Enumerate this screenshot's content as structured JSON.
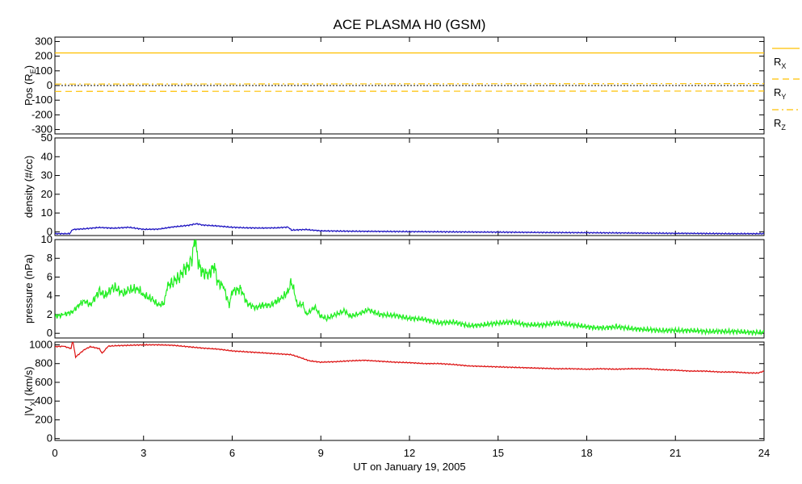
{
  "chart_data": {
    "title": "ACE PLASMA H0 (GSM)",
    "xlabel": "UT on January 19, 2005",
    "x_ticks": [
      0,
      3,
      6,
      9,
      12,
      15,
      18,
      21,
      24
    ],
    "xlim": [
      0,
      24
    ],
    "panels": [
      {
        "id": "pos",
        "type": "line",
        "ylabel_parts": [
          "Pos (R",
          "E",
          ")"
        ],
        "ylim": [
          -330,
          330
        ],
        "y_ticks": [
          300,
          200,
          100,
          0,
          -100,
          -200,
          -300
        ],
        "grid": false,
        "legend_placement": "right",
        "series": [
          {
            "name": "R_X",
            "label_main": "R",
            "label_sub": "X",
            "color": "#FFC000",
            "style": "solid",
            "x": [
              0,
              24
            ],
            "values": [
              222,
              222
            ]
          },
          {
            "name": "R_Y",
            "label_main": "R",
            "label_sub": "Y",
            "color": "#FFC000",
            "style": "dashed",
            "x": [
              0,
              24
            ],
            "values": [
              -40,
              -38
            ]
          },
          {
            "name": "R_Z",
            "label_main": "R",
            "label_sub": "Z",
            "color": "#FFC000",
            "style": "dashdot",
            "x": [
              0,
              24
            ],
            "values": [
              10,
              13
            ]
          }
        ],
        "zero_line": true
      },
      {
        "id": "density",
        "type": "line",
        "ylabel": "density (#/cc)",
        "ylim": [
          -2,
          50
        ],
        "y_ticks": [
          50,
          40,
          30,
          20,
          10,
          0
        ],
        "grid": false,
        "series": [
          {
            "name": "density",
            "color": "#1a10c0",
            "x": [
              0,
              0.5,
              0.6,
              1,
              1.5,
              2,
              2.5,
              3,
              3.5,
              4,
              4.5,
              4.8,
              5,
              5.5,
              6,
              6.5,
              7,
              7.5,
              7.9,
              8,
              8.5,
              9,
              10,
              11,
              12,
              13,
              14,
              15,
              16,
              17,
              18,
              19,
              20,
              21,
              22,
              23,
              24
            ],
            "values": [
              -1,
              -1,
              1.2,
              1.6,
              2.3,
              1.9,
              2.4,
              1.3,
              1.4,
              2.6,
              3.4,
              4.3,
              3.6,
              3.1,
              2.4,
              2.1,
              2.0,
              2.1,
              2.5,
              0.9,
              1.2,
              0.5,
              0.3,
              0.2,
              0.1,
              0.0,
              -0.1,
              -0.2,
              -0.3,
              -0.4,
              -0.5,
              -0.6,
              -0.7,
              -0.8,
              -0.9,
              -1.0,
              -1.0
            ]
          }
        ]
      },
      {
        "id": "pressure",
        "type": "line",
        "ylabel": "pressure (nPa)",
        "ylim": [
          -0.5,
          10
        ],
        "y_ticks": [
          10,
          8,
          6,
          4,
          2,
          0
        ],
        "grid": false,
        "series": [
          {
            "name": "pressure",
            "color": "#22ee22",
            "x": [
              0,
              0.3,
              0.6,
              0.8,
              1.0,
              1.2,
              1.5,
              1.7,
              2.0,
              2.3,
              2.5,
              2.8,
              3.0,
              3.3,
              3.5,
              3.7,
              3.8,
              4.0,
              4.2,
              4.4,
              4.6,
              4.7,
              4.75,
              4.8,
              4.9,
              5.0,
              5.2,
              5.4,
              5.5,
              5.7,
              5.9,
              6.0,
              6.3,
              6.5,
              6.8,
              7.0,
              7.3,
              7.5,
              7.7,
              7.9,
              8.0,
              8.1,
              8.2,
              8.4,
              8.5,
              8.7,
              8.8,
              9.0,
              9.2,
              9.5,
              9.8,
              10.0,
              10.3,
              10.6,
              11.0,
              11.5,
              12.0,
              12.5,
              13.0,
              13.5,
              14.0,
              14.5,
              15.0,
              15.5,
              16.0,
              16.5,
              17.0,
              17.5,
              18.0,
              18.3,
              18.6,
              19.0,
              19.5,
              20.0,
              20.5,
              21.0,
              21.5,
              22.0,
              22.5,
              23.0,
              23.5,
              24.0
            ],
            "values": [
              1.8,
              2.0,
              2.3,
              3.0,
              3.5,
              3.0,
              4.5,
              4.0,
              5.0,
              4.2,
              4.6,
              4.8,
              4.1,
              3.6,
              3.0,
              3.2,
              5.0,
              5.5,
              6.0,
              6.8,
              7.5,
              9.0,
              10.4,
              8.5,
              7.0,
              6.5,
              6.3,
              7.2,
              5.5,
              5.0,
              3.0,
              4.5,
              4.7,
              3.2,
              2.7,
              3.0,
              3.0,
              3.4,
              3.8,
              4.5,
              5.5,
              4.5,
              3.0,
              3.1,
              2.0,
              2.5,
              2.8,
              1.8,
              1.6,
              2.0,
              2.4,
              1.8,
              2.1,
              2.5,
              2.0,
              1.9,
              1.6,
              1.5,
              1.1,
              1.2,
              0.8,
              0.9,
              1.1,
              1.2,
              0.9,
              0.9,
              1.1,
              0.9,
              0.7,
              0.6,
              0.6,
              0.7,
              0.5,
              0.4,
              0.3,
              0.3,
              0.3,
              0.2,
              0.2,
              0.2,
              0.1,
              0.1
            ]
          }
        ]
      },
      {
        "id": "vx",
        "type": "line",
        "ylabel_parts": [
          "|V",
          "X",
          "| (km/s)"
        ],
        "ylim": [
          -20,
          1030
        ],
        "y_ticks": [
          1000,
          800,
          600,
          400,
          200,
          0
        ],
        "grid": false,
        "series": [
          {
            "name": "|Vx|",
            "color": "#dd1111",
            "x": [
              0,
              0.3,
              0.55,
              0.6,
              0.7,
              1.0,
              1.2,
              1.5,
              1.6,
              1.8,
              2.0,
              2.5,
              3.0,
              3.5,
              4.0,
              4.5,
              5.0,
              5.5,
              6.0,
              6.5,
              7.0,
              7.5,
              8.0,
              8.3,
              8.6,
              9.0,
              9.5,
              10.0,
              10.5,
              11.0,
              11.5,
              12.0,
              12.5,
              13.0,
              13.5,
              14.0,
              14.5,
              15.0,
              15.5,
              16.0,
              16.5,
              17.0,
              17.5,
              18.0,
              18.5,
              19.0,
              19.5,
              20.0,
              20.5,
              21.0,
              21.5,
              22.0,
              22.5,
              23.0,
              23.5,
              23.8,
              24.0
            ],
            "values": [
              980,
              985,
              960,
              1050,
              870,
              950,
              980,
              960,
              910,
              985,
              990,
              995,
              1000,
              1000,
              995,
              980,
              965,
              955,
              935,
              925,
              915,
              905,
              895,
              865,
              830,
              815,
              820,
              830,
              835,
              825,
              815,
              810,
              800,
              800,
              790,
              775,
              770,
              765,
              760,
              755,
              750,
              745,
              745,
              740,
              745,
              740,
              745,
              745,
              735,
              730,
              720,
              720,
              710,
              710,
              700,
              700,
              720
            ]
          }
        ]
      }
    ]
  }
}
